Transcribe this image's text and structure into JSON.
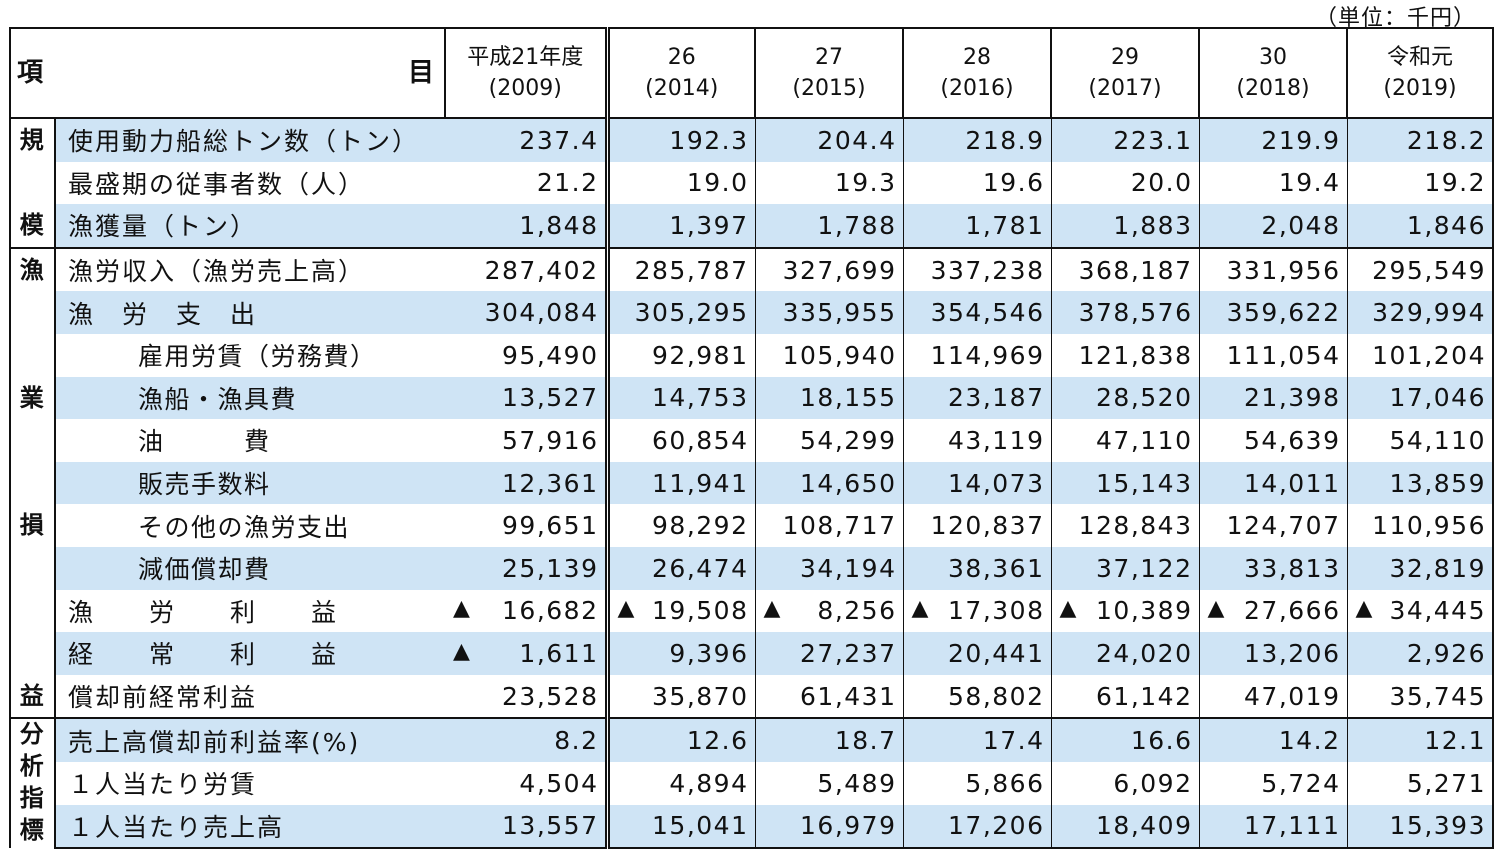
{
  "unit_label": "（単位：千円）",
  "header": {
    "item_label_left": "項",
    "item_label_right": "目",
    "years": [
      {
        "line1": "平成21年度",
        "line2": "(2009)"
      },
      {
        "line1": "26",
        "line2": "(2014)"
      },
      {
        "line1": "27",
        "line2": "(2015)"
      },
      {
        "line1": "28",
        "line2": "(2016)"
      },
      {
        "line1": "29",
        "line2": "(2017)"
      },
      {
        "line1": "30",
        "line2": "(2018)"
      },
      {
        "line1": "令和元",
        "line2": "(2019)"
      }
    ]
  },
  "categories": {
    "kibo": [
      "規",
      "模"
    ],
    "gyogyo_soneki": [
      "漁",
      "業",
      "損",
      "益"
    ],
    "bunseki": [
      "分",
      "析",
      "指",
      "標"
    ]
  },
  "rows": [
    {
      "label": "使用動力船総トン数（トン）",
      "values": [
        "237.4",
        "192.3",
        "204.4",
        "218.9",
        "223.1",
        "219.9",
        "218.2"
      ]
    },
    {
      "label": "最盛期の従事者数（人）",
      "values": [
        "21.2",
        "19.0",
        "19.3",
        "19.6",
        "20.0",
        "19.4",
        "19.2"
      ]
    },
    {
      "label": "漁獲量（トン）",
      "values": [
        "1,848",
        "1,397",
        "1,788",
        "1,781",
        "1,883",
        "2,048",
        "1,846"
      ]
    },
    {
      "label": "漁労収入（漁労売上高）",
      "values": [
        "287,402",
        "285,787",
        "327,699",
        "337,238",
        "368,187",
        "331,956",
        "295,549"
      ]
    },
    {
      "label": "漁　労　支　出",
      "values": [
        "304,084",
        "305,295",
        "335,955",
        "354,546",
        "378,576",
        "359,622",
        "329,994"
      ]
    },
    {
      "label": "雇用労賃（労務費）",
      "values": [
        "95,490",
        "92,981",
        "105,940",
        "114,969",
        "121,838",
        "111,054",
        "101,204"
      ]
    },
    {
      "label": "漁船・漁具費",
      "values": [
        "13,527",
        "14,753",
        "18,155",
        "23,187",
        "28,520",
        "21,398",
        "17,046"
      ]
    },
    {
      "label": "油　　　費",
      "values": [
        "57,916",
        "60,854",
        "54,299",
        "43,119",
        "47,110",
        "54,639",
        "54,110"
      ]
    },
    {
      "label": "販売手数料",
      "values": [
        "12,361",
        "11,941",
        "14,650",
        "14,073",
        "15,143",
        "14,011",
        "13,859"
      ]
    },
    {
      "label": "その他の漁労支出",
      "values": [
        "99,651",
        "98,292",
        "108,717",
        "120,837",
        "128,843",
        "124,707",
        "110,956"
      ]
    },
    {
      "label": "減価償却費",
      "values": [
        "25,139",
        "26,474",
        "34,194",
        "38,361",
        "37,122",
        "33,813",
        "32,819"
      ]
    },
    {
      "label": "漁　　労　　利　　益",
      "values": [
        "16,682",
        "19,508",
        "8,256",
        "17,308",
        "10,389",
        "27,666",
        "34,445"
      ],
      "negative": [
        true,
        true,
        true,
        true,
        true,
        true,
        true
      ]
    },
    {
      "label": "経　　常　　利　　益",
      "values": [
        "1,611",
        "9,396",
        "27,237",
        "20,441",
        "24,020",
        "13,206",
        "2,926"
      ],
      "negative": [
        true,
        false,
        false,
        false,
        false,
        false,
        false
      ]
    },
    {
      "label": "償却前経常利益",
      "values": [
        "23,528",
        "35,870",
        "61,431",
        "58,802",
        "61,142",
        "47,019",
        "35,745"
      ]
    },
    {
      "label": "売上高償却前利益率(%)",
      "values": [
        "8.2",
        "12.6",
        "18.7",
        "17.4",
        "16.6",
        "14.2",
        "12.1"
      ]
    },
    {
      "label": "１人当たり労賃",
      "values": [
        "4,504",
        "4,894",
        "5,489",
        "5,866",
        "6,092",
        "5,724",
        "5,271"
      ]
    },
    {
      "label": "１人当たり売上高",
      "values": [
        "13,557",
        "15,041",
        "16,979",
        "17,206",
        "18,409",
        "17,111",
        "15,393"
      ]
    }
  ],
  "negative_mark": "▲",
  "colors": {
    "row_highlight": "#cfe4f5"
  }
}
